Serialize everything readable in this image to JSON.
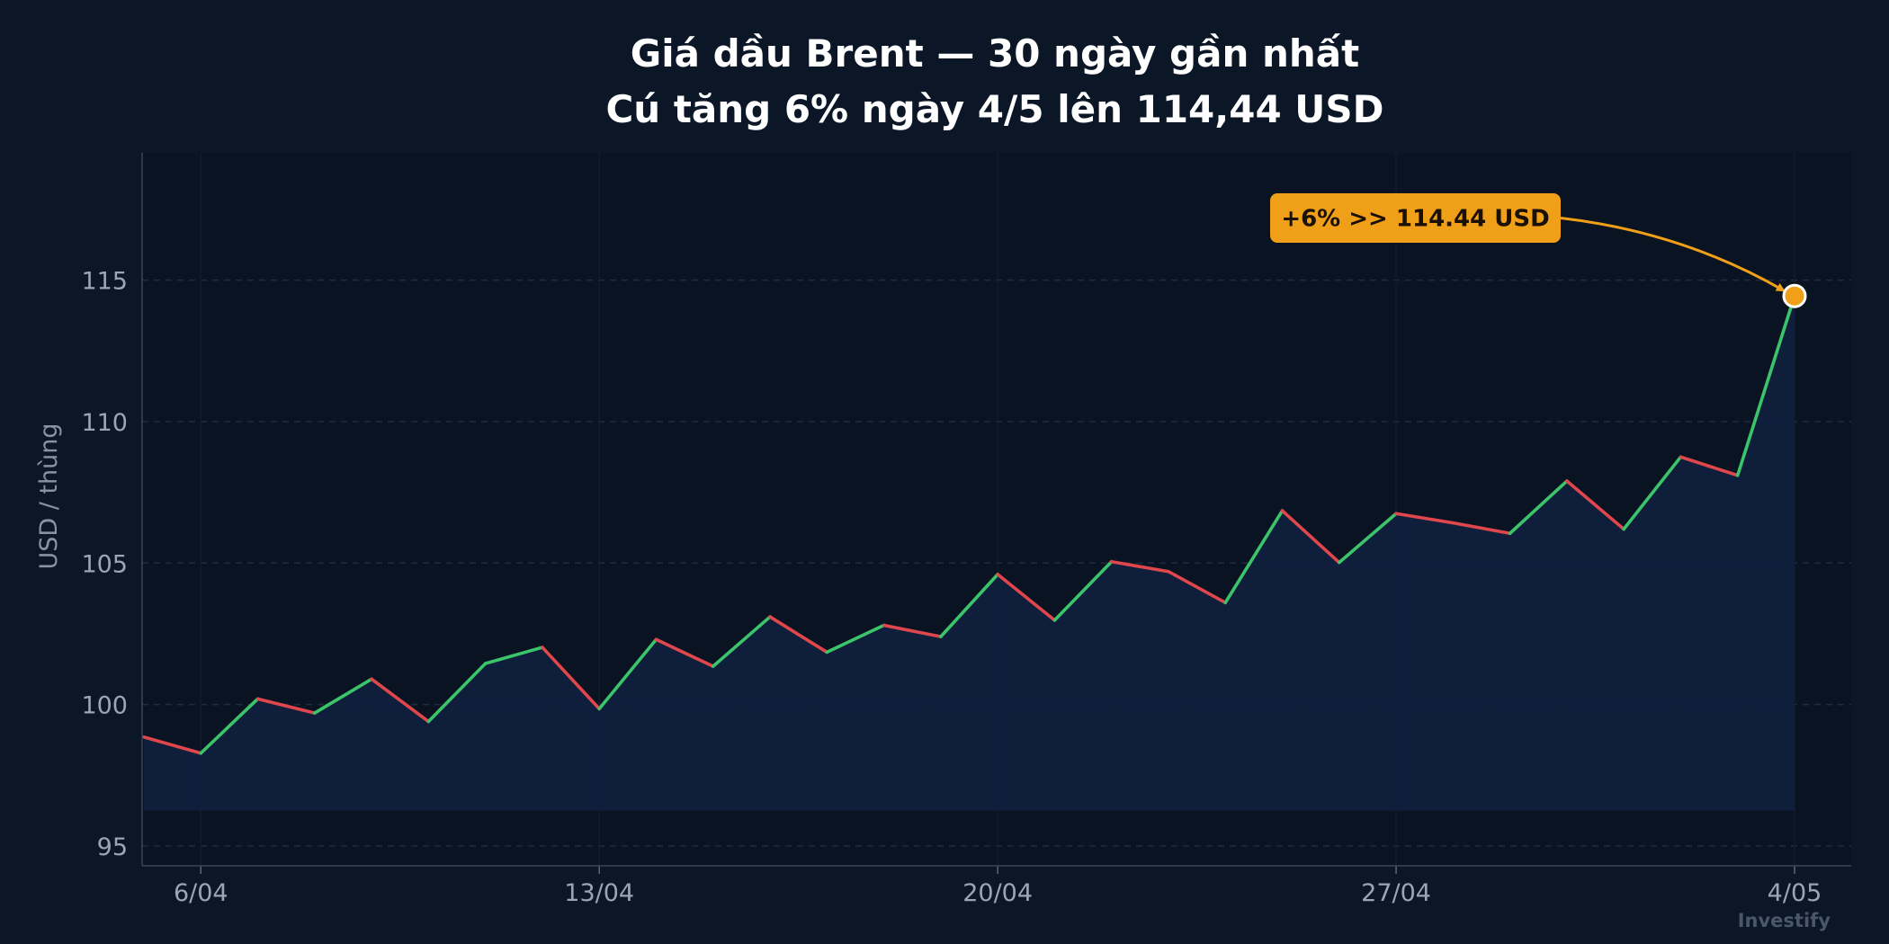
{
  "chart_data": {
    "type": "line",
    "title_line1": "Giá dầu Brent — 30 ngày gần nhất",
    "title_line2": "Cú tăng 6% ngày 4/5 lên 114,44 USD",
    "ylabel": "USD / thùng",
    "xlabel": "",
    "ylim": [
      94.3,
      119.5
    ],
    "yticks": [
      95,
      100,
      105,
      110,
      115
    ],
    "xticks": [
      {
        "label": "6/04",
        "date": "2024-04-06"
      },
      {
        "label": "13/04",
        "date": "2024-04-13"
      },
      {
        "label": "20/04",
        "date": "2024-04-20"
      },
      {
        "label": "27/04",
        "date": "2024-04-27"
      },
      {
        "label": "4/05",
        "date": "2024-05-04"
      }
    ],
    "x": [
      "2024-04-05",
      "2024-04-06",
      "2024-04-07",
      "2024-04-08",
      "2024-04-09",
      "2024-04-10",
      "2024-04-11",
      "2024-04-12",
      "2024-04-13",
      "2024-04-14",
      "2024-04-15",
      "2024-04-16",
      "2024-04-17",
      "2024-04-18",
      "2024-04-19",
      "2024-04-20",
      "2024-04-21",
      "2024-04-22",
      "2024-04-23",
      "2024-04-24",
      "2024-04-25",
      "2024-04-26",
      "2024-04-27",
      "2024-04-28",
      "2024-04-29",
      "2024-04-30",
      "2024-05-01",
      "2024-05-02",
      "2024-05-03",
      "2024-05-04"
    ],
    "values": [
      98.85,
      98.28,
      100.2,
      99.7,
      100.9,
      99.4,
      101.45,
      102.02,
      99.85,
      102.3,
      101.35,
      103.1,
      101.85,
      102.8,
      102.4,
      104.6,
      102.98,
      105.05,
      104.7,
      103.6,
      106.85,
      105.02,
      106.75,
      106.42,
      106.05,
      107.9,
      106.2,
      108.75,
      108.1,
      114.44
    ],
    "grid": true,
    "colors": {
      "up": "#3cc46a",
      "down": "#e0474c",
      "area": "#0f1f3d",
      "annotation": "#f0a018",
      "background": "#0b1626"
    },
    "annotation": {
      "text": "+6%  >>  114.44 USD",
      "date": "2024-05-04",
      "value": 114.44
    },
    "watermark": "Investify"
  }
}
